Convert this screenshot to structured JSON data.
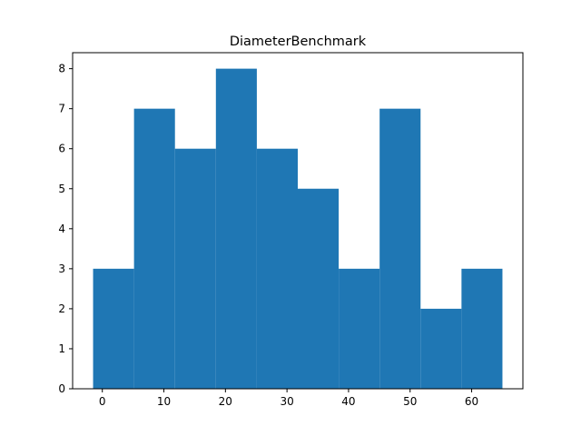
{
  "chart_data": {
    "type": "bar",
    "title": "DiameterBenchmark",
    "xlabel": "",
    "ylabel": "",
    "bin_edges": [
      -1.5,
      5.15,
      11.8,
      18.45,
      25.1,
      31.75,
      38.4,
      45.05,
      51.7,
      58.35,
      65.0
    ],
    "values": [
      3,
      7,
      6,
      8,
      6,
      5,
      3,
      7,
      2,
      3
    ],
    "xlim": [
      -4.825,
      68.325
    ],
    "ylim": [
      0,
      8.4
    ],
    "xticks": [
      0,
      10,
      20,
      30,
      40,
      50,
      60
    ],
    "yticks": [
      0,
      1,
      2,
      3,
      4,
      5,
      6,
      7,
      8
    ],
    "bar_color": "#1f77b4",
    "grid": false,
    "legend": "none"
  }
}
